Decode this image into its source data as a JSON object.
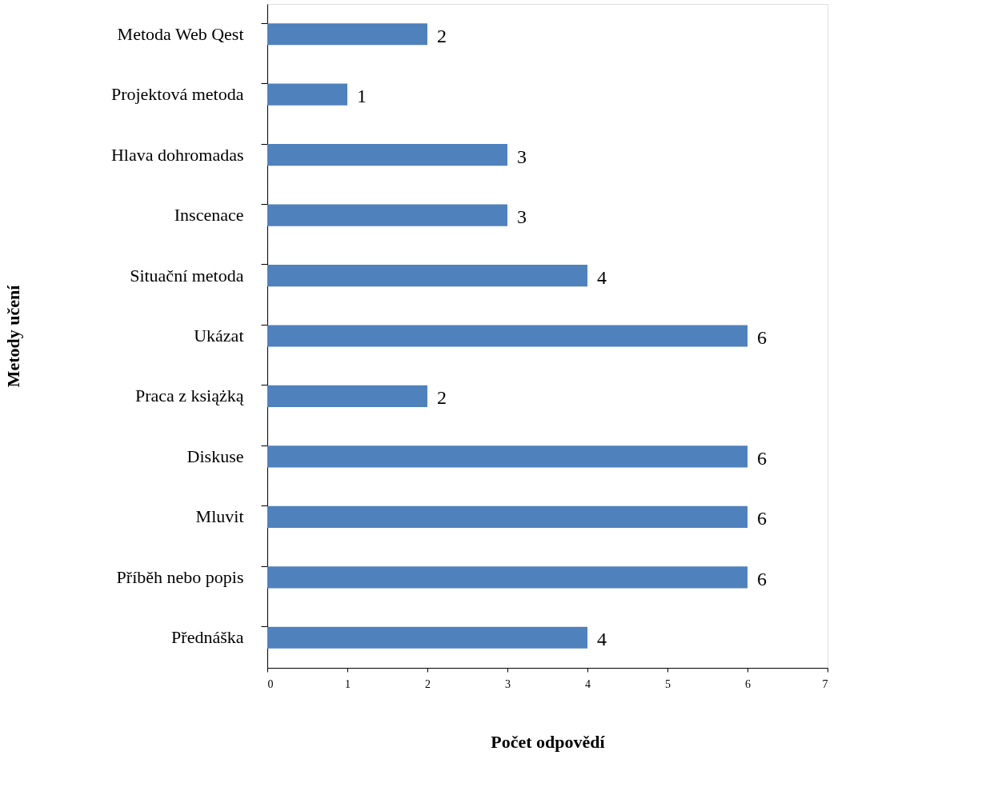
{
  "chart_data": {
    "type": "bar",
    "orientation": "horizontal",
    "xlabel": "Počet odpovědí",
    "ylabel": "Metody učení",
    "categories": [
      "Metoda Web Qest",
      "Projektová metoda",
      "Hlava dohromadas",
      "Inscenace",
      "Situační metoda",
      "Ukázat",
      "Praca z książką",
      "Diskuse",
      "Mluvit",
      "Příběh nebo popis",
      "Přednáška"
    ],
    "values": [
      2,
      1,
      3,
      3,
      4,
      6,
      2,
      6,
      6,
      6,
      4
    ],
    "color": "#4f81bd",
    "xlim": [
      0,
      7
    ],
    "xticks": [
      0,
      1,
      2,
      3,
      4,
      5,
      6,
      7
    ],
    "data_labels": true,
    "grid": false
  }
}
